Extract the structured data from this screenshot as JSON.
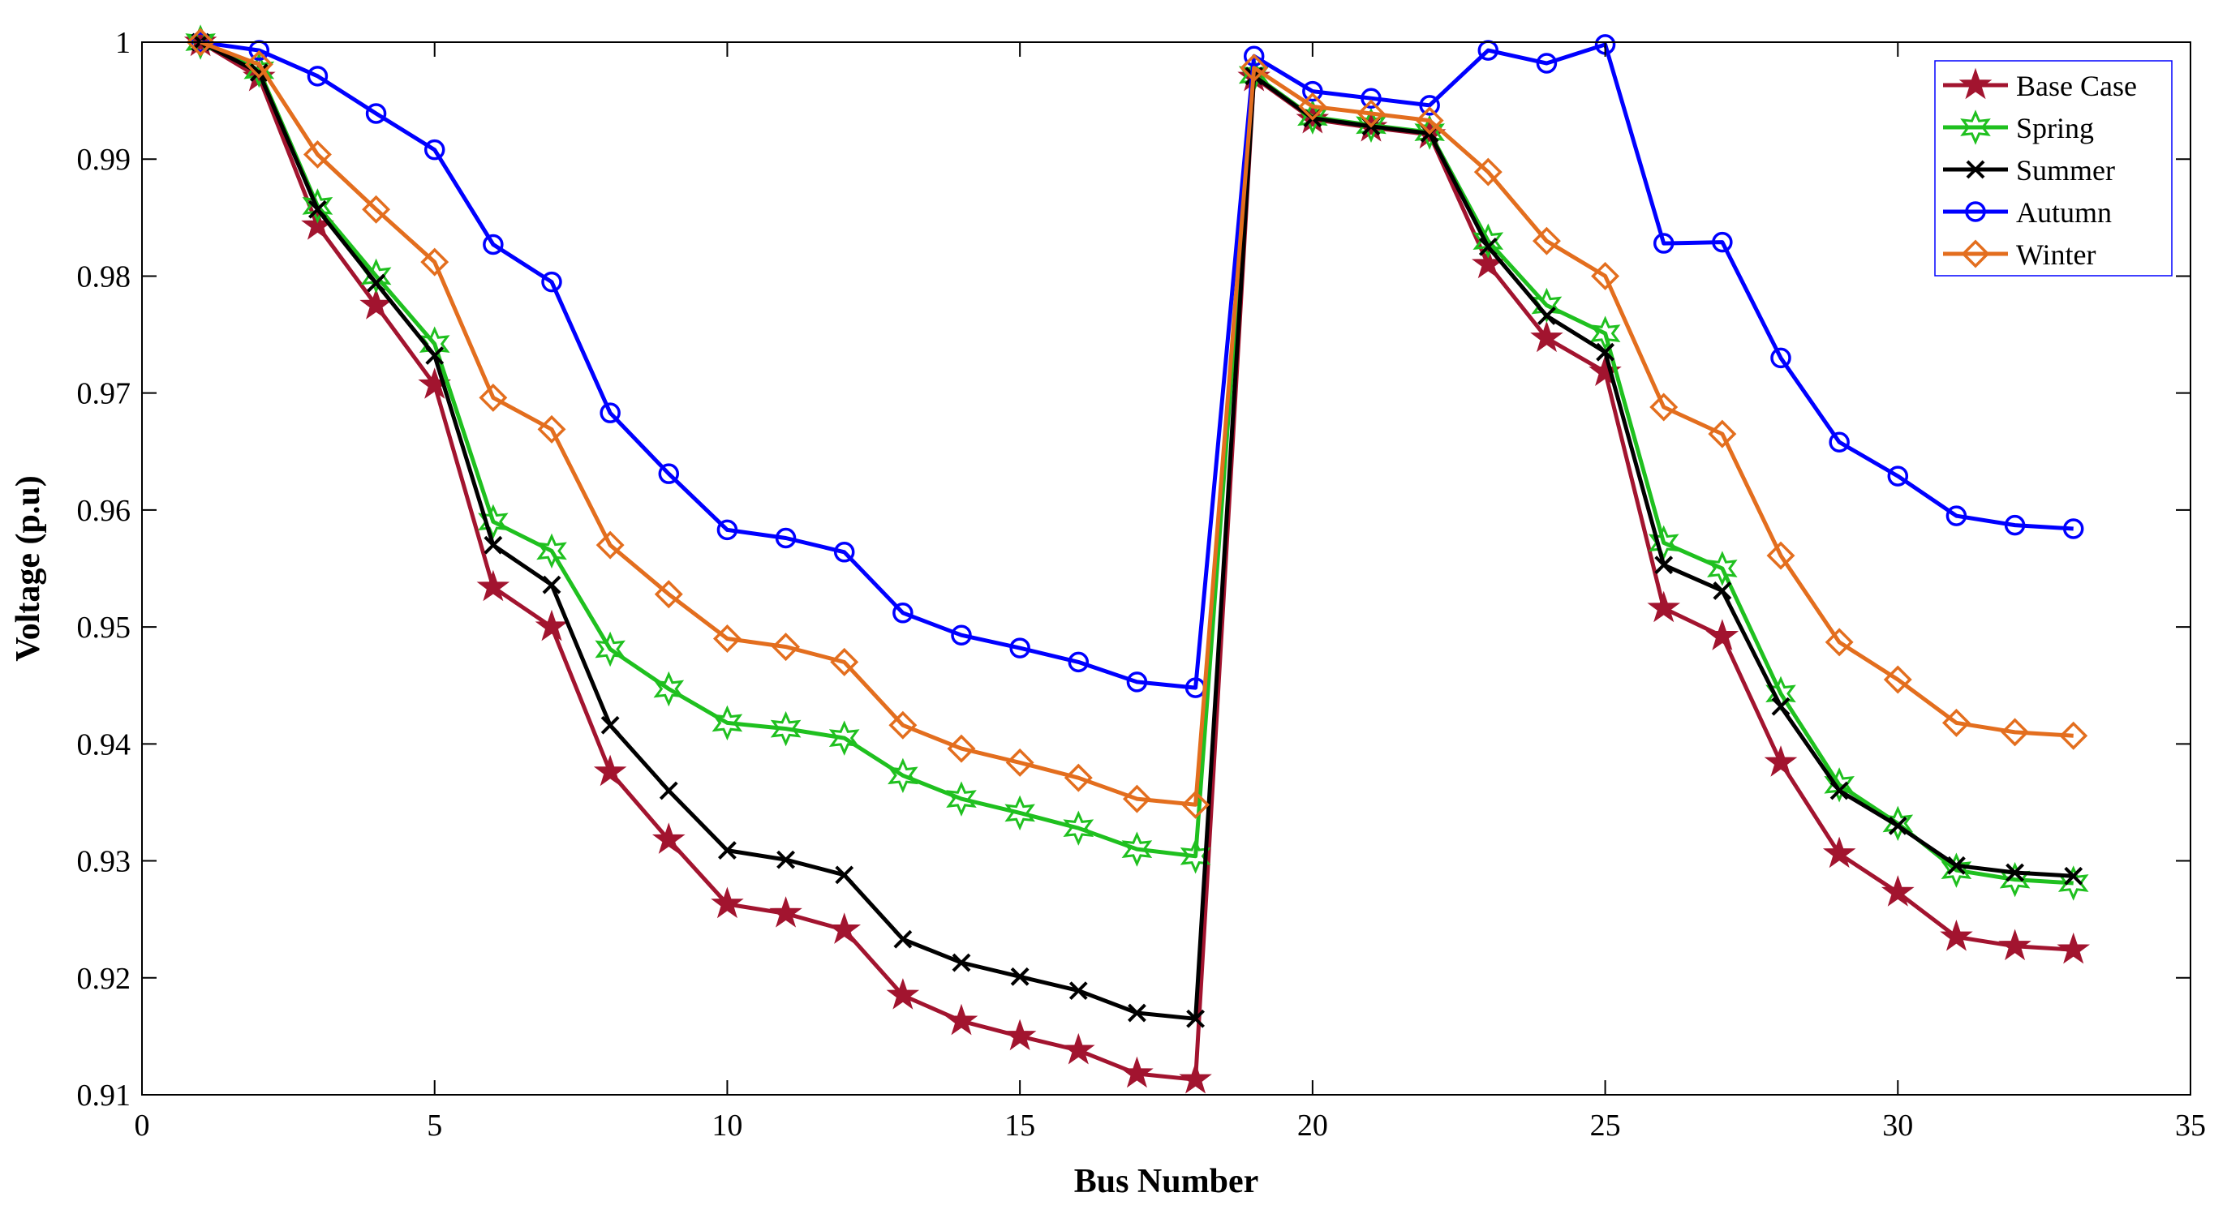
{
  "chart_data": {
    "type": "line",
    "xlabel": "Bus Number",
    "ylabel": "Voltage (p.u)",
    "xlim": [
      0,
      35
    ],
    "ylim": [
      0.91,
      1.0
    ],
    "xticks": [
      0,
      5,
      10,
      15,
      20,
      25,
      30,
      35
    ],
    "yticks": [
      0.91,
      0.92,
      0.93,
      0.94,
      0.95,
      0.96,
      0.97,
      0.98,
      0.99,
      1.0
    ],
    "xtick_labels": [
      "0",
      "5",
      "10",
      "15",
      "20",
      "25",
      "30",
      "35"
    ],
    "ytick_labels": [
      "0.91",
      "0.92",
      "0.93",
      "0.94",
      "0.95",
      "0.96",
      "0.97",
      "0.98",
      "0.99",
      "1"
    ],
    "grid": false,
    "legend_position": "top-right",
    "x": [
      1,
      2,
      3,
      4,
      5,
      6,
      7,
      8,
      9,
      10,
      11,
      12,
      13,
      14,
      15,
      16,
      17,
      18,
      19,
      20,
      21,
      22,
      23,
      24,
      25,
      26,
      27,
      28,
      29,
      30,
      31,
      32,
      33
    ],
    "series": [
      {
        "name": "Base Case",
        "color": "#a2142f",
        "marker": "star",
        "values": [
          1.0,
          0.997,
          0.9843,
          0.9775,
          0.9707,
          0.9534,
          0.95,
          0.9376,
          0.9318,
          0.9263,
          0.9255,
          0.9241,
          0.9185,
          0.9163,
          0.915,
          0.9138,
          0.9118,
          0.9113,
          0.997,
          0.9934,
          0.9927,
          0.9921,
          0.981,
          0.9747,
          0.9718,
          0.9516,
          0.9492,
          0.9384,
          0.9306,
          0.9273,
          0.9235,
          0.9227,
          0.9224
        ]
      },
      {
        "name": "Spring",
        "color": "#1fc01f",
        "marker": "hexagram",
        "values": [
          1.0,
          0.9976,
          0.986,
          0.98,
          0.9742,
          0.959,
          0.9565,
          0.9481,
          0.9447,
          0.9418,
          0.9413,
          0.9405,
          0.9373,
          0.9353,
          0.9341,
          0.9328,
          0.931,
          0.9304,
          0.9972,
          0.9936,
          0.9929,
          0.9923,
          0.983,
          0.9775,
          0.9751,
          0.9572,
          0.955,
          0.9443,
          0.9365,
          0.9332,
          0.9292,
          0.9284,
          0.9281
        ]
      },
      {
        "name": "Summer",
        "color": "#000000",
        "marker": "x",
        "values": [
          1.0,
          0.9974,
          0.9857,
          0.9794,
          0.9732,
          0.957,
          0.9536,
          0.9416,
          0.936,
          0.9309,
          0.9301,
          0.9288,
          0.9233,
          0.9213,
          0.9201,
          0.9189,
          0.917,
          0.9165,
          0.9971,
          0.9935,
          0.9928,
          0.9922,
          0.9825,
          0.9766,
          0.9735,
          0.9553,
          0.9531,
          0.9432,
          0.936,
          0.933,
          0.9296,
          0.929,
          0.9287
        ]
      },
      {
        "name": "Autumn",
        "color": "#0000ff",
        "marker": "circle",
        "values": [
          1.0,
          0.9993,
          0.9971,
          0.9939,
          0.9908,
          0.9827,
          0.9795,
          0.9683,
          0.9631,
          0.9583,
          0.9576,
          0.9564,
          0.9512,
          0.9493,
          0.9482,
          0.947,
          0.9453,
          0.9448,
          0.9988,
          0.9958,
          0.9952,
          0.9946,
          0.9993,
          0.9982,
          0.9998,
          0.9828,
          0.9829,
          0.973,
          0.9658,
          0.9629,
          0.9595,
          0.9587,
          0.9584
        ]
      },
      {
        "name": "Winter",
        "color": "#e36e1e",
        "marker": "diamond",
        "values": [
          1.0,
          0.9981,
          0.9904,
          0.9857,
          0.9812,
          0.9696,
          0.9669,
          0.957,
          0.9528,
          0.949,
          0.9483,
          0.947,
          0.9416,
          0.9396,
          0.9384,
          0.9371,
          0.9353,
          0.9348,
          0.9978,
          0.9945,
          0.9939,
          0.9933,
          0.9889,
          0.983,
          0.98,
          0.9688,
          0.9665,
          0.9561,
          0.9487,
          0.9455,
          0.9418,
          0.941,
          0.9407
        ]
      }
    ]
  }
}
